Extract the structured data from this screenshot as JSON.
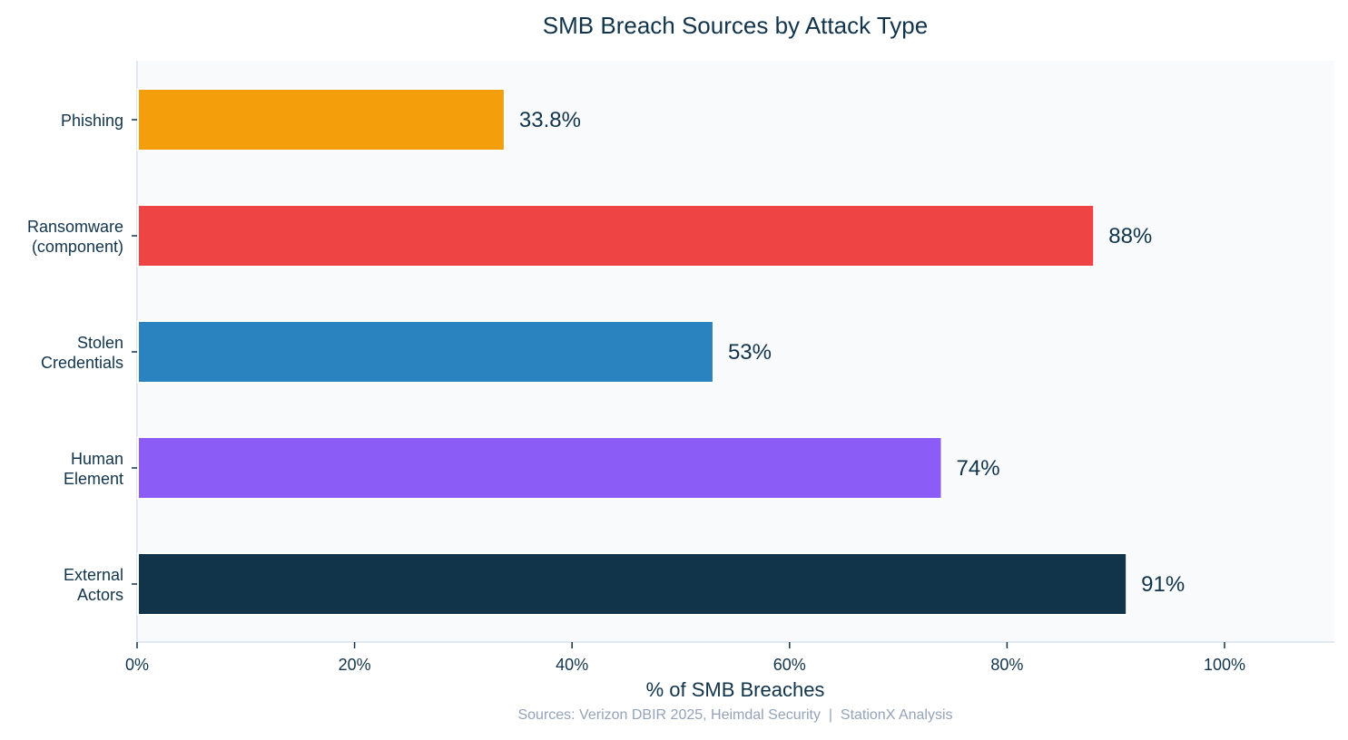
{
  "chart_data": {
    "type": "bar",
    "orientation": "horizontal",
    "title": "SMB Breach Sources by Attack Type",
    "xlabel": "% of SMB Breaches",
    "ylabel": "",
    "xlim": [
      0,
      110
    ],
    "x_ticks": [
      0,
      20,
      40,
      60,
      80,
      100
    ],
    "x_tick_labels": [
      "0%",
      "20%",
      "40%",
      "60%",
      "80%",
      "100%"
    ],
    "categories": [
      [
        "Phishing"
      ],
      [
        "Ransomware",
        "(component)"
      ],
      [
        "Stolen",
        "Credentials"
      ],
      [
        "Human",
        "Element"
      ],
      [
        "External",
        "Actors"
      ]
    ],
    "values": [
      33.8,
      88,
      53,
      74,
      91
    ],
    "data_labels": [
      "33.8%",
      "88%",
      "53%",
      "74%",
      "91%"
    ],
    "colors": [
      "#f59e0b",
      "#ef4444",
      "#2a82be",
      "#8b5cf6",
      "#12344a"
    ],
    "grid": false,
    "plot_background": "#f8fafc",
    "text_color": "#12344a",
    "source_note": "Sources: Verizon DBIR 2025, Heimdal Security  |  StationX Analysis"
  }
}
